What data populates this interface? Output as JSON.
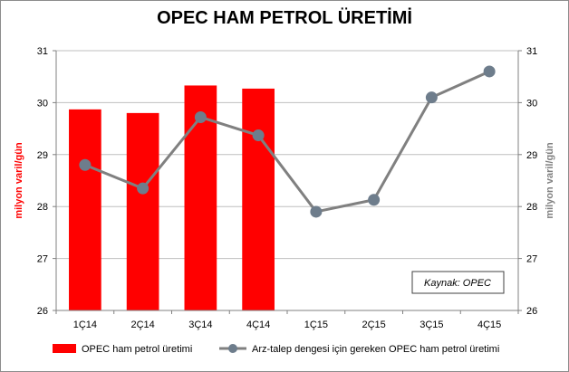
{
  "chart_data": {
    "type": "bar+line",
    "title": "OPEC HAM PETROL ÜRETİMİ",
    "categories": [
      "1Ç14",
      "2Ç14",
      "3Ç14",
      "4Ç14",
      "1Ç15",
      "2Ç15",
      "3Ç15",
      "4Ç15"
    ],
    "series": [
      {
        "name": "OPEC ham petrol üretimi",
        "type": "bar",
        "axis": "left",
        "color": "#ff0000",
        "values": [
          29.87,
          29.8,
          30.33,
          30.27,
          null,
          null,
          null,
          null
        ]
      },
      {
        "name": "Arz-talep dengesi için gereken OPEC ham petrol üretimi",
        "type": "line",
        "axis": "right",
        "color": "#808080",
        "values": [
          28.8,
          28.35,
          29.72,
          29.37,
          27.9,
          28.13,
          30.1,
          30.6
        ]
      }
    ],
    "ylabel_left": "milyon varil/gün",
    "ylabel_right": "milyon varil/gün",
    "ylim": [
      26,
      31
    ],
    "yticks": [
      26,
      27,
      28,
      29,
      30,
      31
    ],
    "grid": true,
    "legend": "bottom",
    "source_note": "Kaynak: OPEC"
  }
}
